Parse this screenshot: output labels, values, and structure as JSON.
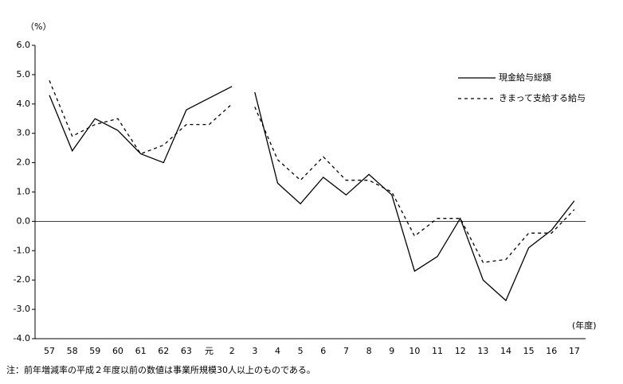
{
  "chart_data": {
    "type": "line",
    "y_unit": "（%）",
    "x_unit": "(年度)",
    "note": "注：前年増減率の平成２年度以前の数値は事業所規模30人以上のものである。",
    "categories": [
      [
        "57",
        "58",
        "59",
        "60",
        "61",
        "62",
        "63",
        "元",
        "2"
      ],
      [
        "3",
        "4",
        "5",
        "6",
        "7",
        "8",
        "9",
        "10",
        "11",
        "12",
        "13",
        "14",
        "15",
        "16",
        "17"
      ]
    ],
    "series": [
      {
        "name": "現金給与総額",
        "color": "#000000",
        "style": "solid",
        "values": [
          [
            4.3,
            2.4,
            3.5,
            3.1,
            2.3,
            2.0,
            3.8,
            4.2,
            4.6
          ],
          [
            4.4,
            1.3,
            0.6,
            1.5,
            0.9,
            1.6,
            0.9,
            -1.7,
            -1.2,
            0.1,
            -2.0,
            -2.7,
            -0.9,
            -0.3,
            0.7
          ]
        ]
      },
      {
        "name": "きまって支給する給与",
        "color": "#000000",
        "style": "dashed",
        "values": [
          [
            4.8,
            2.9,
            3.3,
            3.5,
            2.3,
            2.6,
            3.3,
            3.3,
            4.0
          ],
          [
            3.9,
            2.1,
            1.4,
            2.2,
            1.4,
            1.4,
            1.0,
            -0.5,
            0.1,
            0.1,
            -1.4,
            -1.3,
            -0.4,
            -0.4,
            0.4
          ]
        ]
      }
    ],
    "ylim": [
      -4,
      6
    ],
    "yticks": [
      {
        "value": -4,
        "label": "-4.0"
      },
      {
        "value": -3,
        "label": "-3.0"
      },
      {
        "value": -2,
        "label": "-2.0"
      },
      {
        "value": -1,
        "label": "-1.0"
      },
      {
        "value": 0,
        "label": "0.0"
      },
      {
        "value": 1,
        "label": "1.0"
      },
      {
        "value": 2,
        "label": "2.0"
      },
      {
        "value": 3,
        "label": "3.0"
      },
      {
        "value": 4,
        "label": "4.0"
      },
      {
        "value": 5,
        "label": "5.0"
      },
      {
        "value": 6,
        "label": "6.0"
      }
    ]
  }
}
